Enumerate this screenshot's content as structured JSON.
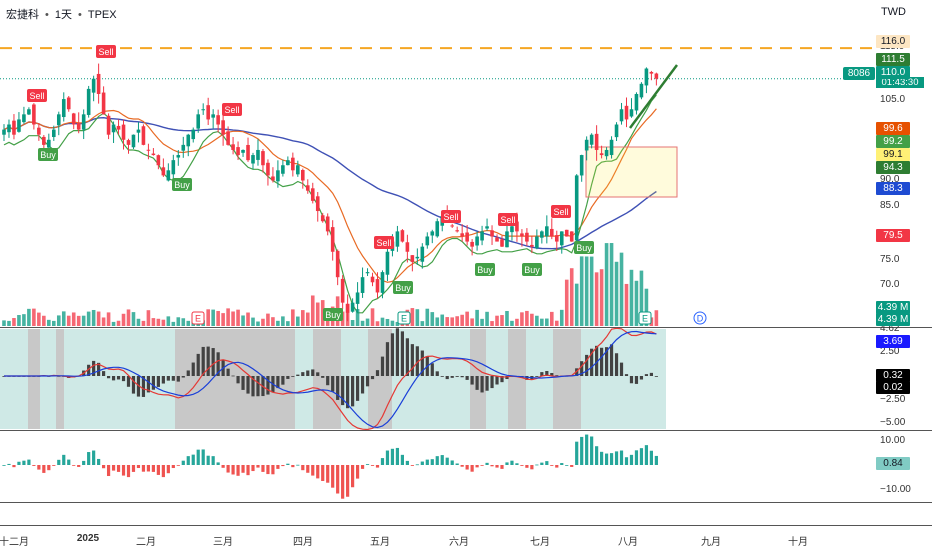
{
  "header": {
    "symbol": "宏捷科",
    "interval": "1天",
    "exchange": "TPEX",
    "separator": "•"
  },
  "currency": "TWD",
  "symbol_code": "8086",
  "countdown": "01:43:30",
  "price_axis": [
    "115.0",
    "105.0",
    "90.0",
    "85.0",
    "75.0",
    "70.0"
  ],
  "price_tags": [
    {
      "text": "116.0",
      "bg": "#fde6c3",
      "fg": "#131722"
    },
    {
      "text": "111.5",
      "bg": "#2e7d32",
      "fg": "#ffffff"
    },
    {
      "text": "110.0",
      "bg": "#089981",
      "fg": "#ffffff"
    },
    {
      "text": "99.6",
      "bg": "#e65100",
      "fg": "#ffffff"
    },
    {
      "text": "99.2",
      "bg": "#43a047",
      "fg": "#ffffff"
    },
    {
      "text": "99.1",
      "bg": "#fff176",
      "fg": "#131722"
    },
    {
      "text": "94.3",
      "bg": "#2e7d32",
      "fg": "#ffffff"
    },
    {
      "text": "88.3",
      "bg": "#1e4bd2",
      "fg": "#ffffff"
    },
    {
      "text": "79.5",
      "bg": "#f23645",
      "fg": "#ffffff"
    },
    {
      "text": "4.39 M",
      "bg": "#089981",
      "fg": "#ffffff"
    },
    {
      "text": "4.39 M",
      "bg": "#089981",
      "fg": "#ffffff"
    }
  ],
  "macd_axis": [
    "4.62",
    "2.50",
    "−2.50",
    "−5.00"
  ],
  "macd_tags": [
    {
      "text": "3.69",
      "bg": "#1a1aff",
      "fg": "#ffffff"
    },
    {
      "text": "0.32",
      "bg": "#000000",
      "fg": "#ffffff"
    },
    {
      "text": "0.02",
      "bg": "#000000",
      "fg": "#ffffff"
    }
  ],
  "osc_axis": [
    "10.00",
    "−10.00"
  ],
  "osc_tags": [
    {
      "text": "0.84",
      "bg": "#80cbc4",
      "fg": "#131722"
    }
  ],
  "months": [
    "十二月",
    "2025",
    "二月",
    "三月",
    "四月",
    "五月",
    "六月",
    "七月",
    "八月",
    "九月",
    "十月"
  ],
  "signals": {
    "buy": "Buy",
    "sell": "Sell",
    "earnings": "E",
    "dividend": "D"
  },
  "chart_data": {
    "type": "candlestick",
    "price_range": [
      62,
      118
    ],
    "resistance_level": 116.0,
    "last_price": 110.0,
    "closes": [
      100,
      101,
      99,
      102,
      103,
      104,
      101,
      99,
      97,
      98,
      100,
      103,
      106,
      104,
      101,
      100,
      103,
      108,
      110,
      107,
      103,
      99,
      101,
      100,
      98,
      97,
      99,
      100,
      97,
      96,
      95,
      93,
      91,
      92,
      94,
      95,
      97,
      99,
      100,
      103,
      104,
      102,
      103,
      101,
      99,
      97,
      96,
      95,
      96,
      94,
      95,
      96,
      93,
      91,
      90,
      92,
      93,
      94,
      92,
      93,
      90,
      88,
      86,
      84,
      82,
      80,
      76,
      71,
      66,
      64,
      66,
      68,
      71,
      72,
      70,
      68,
      72,
      76,
      78,
      80,
      78,
      76,
      74,
      75,
      77,
      79,
      80,
      82,
      83,
      82,
      81,
      80,
      79,
      78,
      77,
      79,
      80,
      81,
      79,
      78,
      77,
      80,
      81,
      80,
      79,
      78,
      77,
      79,
      80,
      81,
      79,
      78,
      80,
      79,
      78,
      91,
      95,
      98,
      99,
      96,
      95,
      96,
      98,
      101,
      104,
      102,
      104,
      107,
      109,
      112,
      111,
      110
    ],
    "volume_last": "4.39M",
    "macd": {
      "macd": 3.69,
      "signal": 4.62,
      "histogram": 0.32,
      "other": 0.02,
      "range": [
        -5,
        5
      ]
    },
    "oscillator": {
      "value": 0.84,
      "range": [
        -12,
        12
      ]
    }
  }
}
